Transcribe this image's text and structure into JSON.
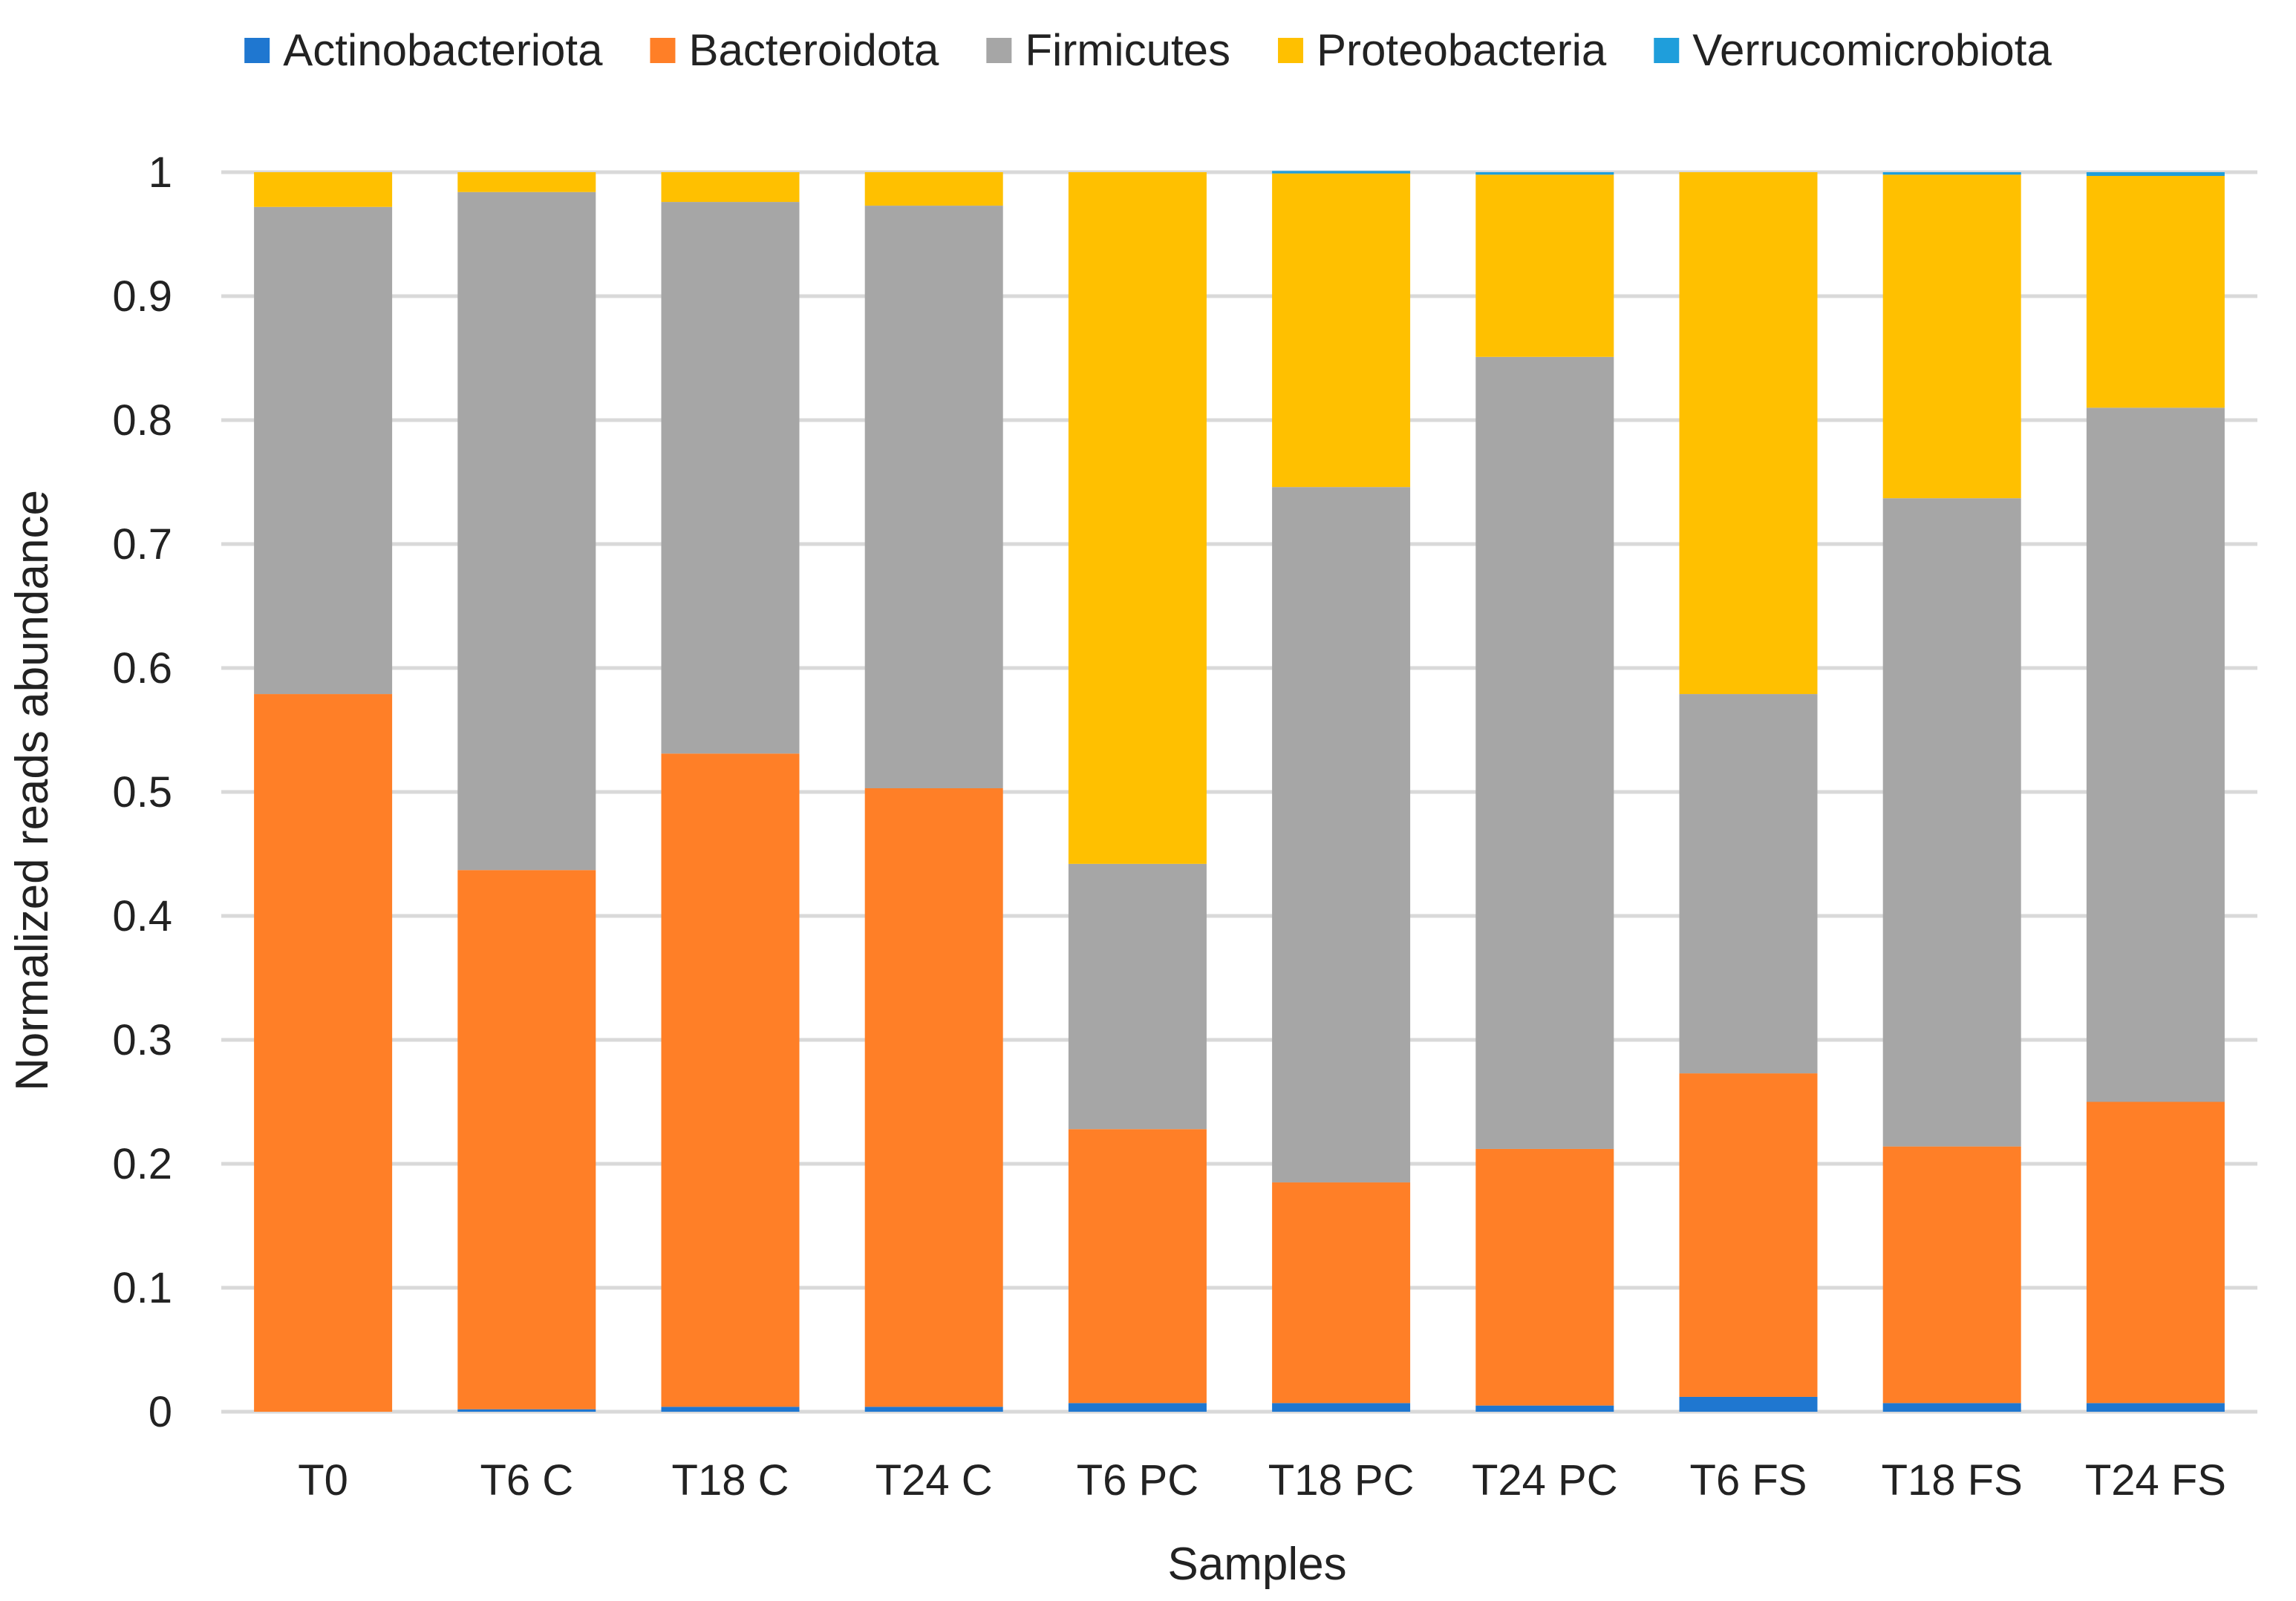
{
  "chart_data": {
    "type": "bar",
    "stacked": true,
    "xlabel": "Samples",
    "ylabel": "Normalized reads abundance",
    "ylim": [
      0,
      1
    ],
    "yticks": [
      "0",
      "0.1",
      "0.2",
      "0.3",
      "0.4",
      "0.5",
      "0.6",
      "0.7",
      "0.8",
      "0.9",
      "1"
    ],
    "grid": true,
    "legend_position": "top",
    "categories": [
      "T0",
      "T6 C",
      "T18 C",
      "T24 C",
      "T6 PC",
      "T18 PC",
      "T24 PC",
      "T6 FS",
      "T18 FS",
      "T24 FS"
    ],
    "series": [
      {
        "name": "Actinobacteriota",
        "color": "#1F77D0",
        "values": [
          0.0,
          0.002,
          0.004,
          0.004,
          0.007,
          0.007,
          0.005,
          0.012,
          0.007,
          0.007
        ]
      },
      {
        "name": "Bacteroidota",
        "color": "#FF7F27",
        "values": [
          0.579,
          0.435,
          0.527,
          0.499,
          0.221,
          0.178,
          0.207,
          0.261,
          0.207,
          0.243
        ]
      },
      {
        "name": "Firmicutes",
        "color": "#A6A6A6",
        "values": [
          0.393,
          0.547,
          0.445,
          0.47,
          0.214,
          0.561,
          0.639,
          0.306,
          0.523,
          0.56
        ]
      },
      {
        "name": "Proteobacteria",
        "color": "#FFC000",
        "values": [
          0.028,
          0.016,
          0.024,
          0.027,
          0.558,
          0.253,
          0.147,
          0.421,
          0.261,
          0.187
        ]
      },
      {
        "name": "Verrucomicrobiota",
        "color": "#1F9EDB",
        "values": [
          0.0,
          0.0,
          0.0,
          0.0,
          0.0,
          0.002,
          0.002,
          0.0,
          0.002,
          0.003
        ]
      }
    ]
  }
}
